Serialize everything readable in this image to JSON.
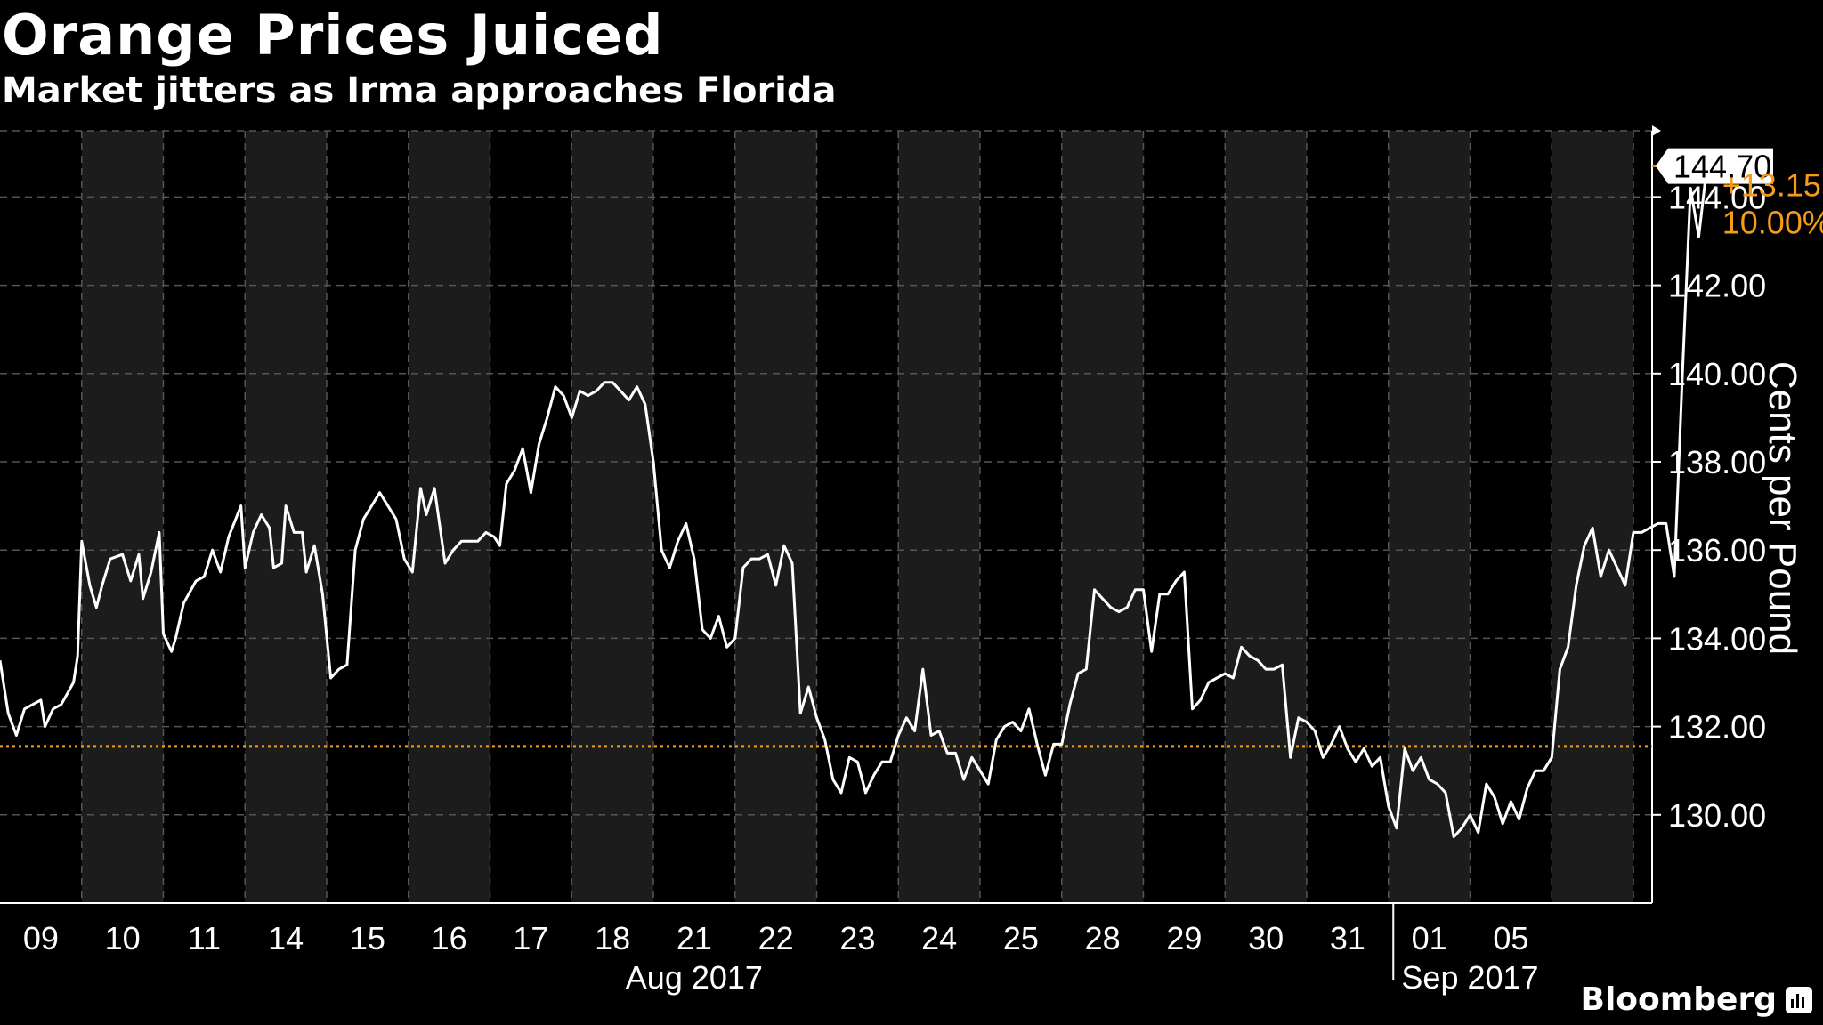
{
  "title": "Orange Prices Juiced",
  "subtitle": "Market jitters as Irma approaches Florida",
  "brand": "Bloomberg",
  "colors": {
    "background": "#000000",
    "line": "#ffffff",
    "accent": "#f59b1a",
    "band": "#1c1c1c"
  },
  "chart_data": {
    "type": "line",
    "ylabel": "Cents per Pound",
    "ylim": [
      128.0,
      145.5
    ],
    "yticks": [
      130.0,
      132.0,
      134.0,
      136.0,
      138.0,
      140.0,
      142.0,
      144.0
    ],
    "ytick_labels": [
      "130.00",
      "132.00",
      "134.00",
      "136.00",
      "138.00",
      "140.00",
      "142.00",
      "144.00"
    ],
    "x_days": [
      "09",
      "10",
      "11",
      "14",
      "15",
      "16",
      "17",
      "18",
      "21",
      "22",
      "23",
      "24",
      "25",
      "28",
      "29",
      "30",
      "31",
      "01",
      "05"
    ],
    "month_labels": [
      {
        "label": "Aug 2017",
        "from_day": 0,
        "to_day": 16
      },
      {
        "label": "Sep 2017",
        "from_day": 17,
        "to_day": 18
      }
    ],
    "grid": true,
    "last_value": "144.70",
    "change": "+13.15",
    "change_pct": "10.00%",
    "reference_value": 131.55,
    "series": [
      {
        "values": [
          [
            0.0,
            133.5
          ],
          [
            0.1,
            132.3
          ],
          [
            0.2,
            131.8
          ],
          [
            0.3,
            132.4
          ],
          [
            0.5,
            132.6
          ],
          [
            0.55,
            132.0
          ],
          [
            0.65,
            132.4
          ],
          [
            0.75,
            132.5
          ],
          [
            0.9,
            133.0
          ],
          [
            0.95,
            133.6
          ],
          [
            1.0,
            136.2
          ],
          [
            1.1,
            135.2
          ],
          [
            1.18,
            134.7
          ],
          [
            1.25,
            135.2
          ],
          [
            1.35,
            135.8
          ],
          [
            1.5,
            135.9
          ],
          [
            1.6,
            135.3
          ],
          [
            1.7,
            135.9
          ],
          [
            1.75,
            134.9
          ],
          [
            1.85,
            135.5
          ],
          [
            1.95,
            136.4
          ],
          [
            2.0,
            134.1
          ],
          [
            2.1,
            133.7
          ],
          [
            2.15,
            134.0
          ],
          [
            2.25,
            134.8
          ],
          [
            2.4,
            135.3
          ],
          [
            2.5,
            135.4
          ],
          [
            2.6,
            136.0
          ],
          [
            2.7,
            135.5
          ],
          [
            2.8,
            136.3
          ],
          [
            2.95,
            137.0
          ],
          [
            3.0,
            135.6
          ],
          [
            3.1,
            136.4
          ],
          [
            3.2,
            136.8
          ],
          [
            3.3,
            136.5
          ],
          [
            3.35,
            135.6
          ],
          [
            3.45,
            135.7
          ],
          [
            3.5,
            137.0
          ],
          [
            3.6,
            136.4
          ],
          [
            3.7,
            136.4
          ],
          [
            3.75,
            135.5
          ],
          [
            3.85,
            136.1
          ],
          [
            3.95,
            135.0
          ],
          [
            4.05,
            133.1
          ],
          [
            4.15,
            133.3
          ],
          [
            4.25,
            133.4
          ],
          [
            4.35,
            136.0
          ],
          [
            4.45,
            136.7
          ],
          [
            4.55,
            137.0
          ],
          [
            4.65,
            137.3
          ],
          [
            4.75,
            137.0
          ],
          [
            4.85,
            136.7
          ],
          [
            4.95,
            135.8
          ],
          [
            5.05,
            135.5
          ],
          [
            5.15,
            137.4
          ],
          [
            5.22,
            136.8
          ],
          [
            5.32,
            137.4
          ],
          [
            5.45,
            135.7
          ],
          [
            5.55,
            136.0
          ],
          [
            5.65,
            136.2
          ],
          [
            5.75,
            136.2
          ],
          [
            5.85,
            136.2
          ],
          [
            5.95,
            136.4
          ],
          [
            6.05,
            136.3
          ],
          [
            6.12,
            136.1
          ],
          [
            6.2,
            137.5
          ],
          [
            6.3,
            137.8
          ],
          [
            6.4,
            138.3
          ],
          [
            6.5,
            137.3
          ],
          [
            6.6,
            138.4
          ],
          [
            6.7,
            139.0
          ],
          [
            6.8,
            139.7
          ],
          [
            6.9,
            139.5
          ],
          [
            7.0,
            139.0
          ],
          [
            7.1,
            139.6
          ],
          [
            7.2,
            139.5
          ],
          [
            7.3,
            139.6
          ],
          [
            7.4,
            139.8
          ],
          [
            7.5,
            139.8
          ],
          [
            7.6,
            139.6
          ],
          [
            7.7,
            139.4
          ],
          [
            7.8,
            139.7
          ],
          [
            7.9,
            139.3
          ],
          [
            8.0,
            138.0
          ],
          [
            8.1,
            136.0
          ],
          [
            8.2,
            135.6
          ],
          [
            8.3,
            136.2
          ],
          [
            8.4,
            136.6
          ],
          [
            8.5,
            135.8
          ],
          [
            8.6,
            134.2
          ],
          [
            8.7,
            134.0
          ],
          [
            8.8,
            134.5
          ],
          [
            8.9,
            133.8
          ],
          [
            9.0,
            134.0
          ],
          [
            9.1,
            135.6
          ],
          [
            9.2,
            135.8
          ],
          [
            9.3,
            135.8
          ],
          [
            9.4,
            135.9
          ],
          [
            9.5,
            135.2
          ],
          [
            9.6,
            136.1
          ],
          [
            9.7,
            135.7
          ],
          [
            9.8,
            132.3
          ],
          [
            9.9,
            132.9
          ],
          [
            10.0,
            132.2
          ],
          [
            10.1,
            131.7
          ],
          [
            10.2,
            130.8
          ],
          [
            10.3,
            130.5
          ],
          [
            10.4,
            131.3
          ],
          [
            10.5,
            131.2
          ],
          [
            10.6,
            130.5
          ],
          [
            10.7,
            130.9
          ],
          [
            10.8,
            131.2
          ],
          [
            10.9,
            131.2
          ],
          [
            11.0,
            131.8
          ],
          [
            11.1,
            132.2
          ],
          [
            11.2,
            131.9
          ],
          [
            11.3,
            133.3
          ],
          [
            11.4,
            131.8
          ],
          [
            11.5,
            131.9
          ],
          [
            11.6,
            131.4
          ],
          [
            11.7,
            131.4
          ],
          [
            11.8,
            130.8
          ],
          [
            11.9,
            131.3
          ],
          [
            12.0,
            131.0
          ],
          [
            12.1,
            130.7
          ],
          [
            12.2,
            131.7
          ],
          [
            12.3,
            132.0
          ],
          [
            12.4,
            132.1
          ],
          [
            12.5,
            131.9
          ],
          [
            12.6,
            132.4
          ],
          [
            12.7,
            131.6
          ],
          [
            12.8,
            130.9
          ],
          [
            12.9,
            131.6
          ],
          [
            13.0,
            131.6
          ],
          [
            13.1,
            132.5
          ],
          [
            13.2,
            133.2
          ],
          [
            13.3,
            133.3
          ],
          [
            13.4,
            135.1
          ],
          [
            13.5,
            134.9
          ],
          [
            13.6,
            134.7
          ],
          [
            13.7,
            134.6
          ],
          [
            13.8,
            134.7
          ],
          [
            13.9,
            135.1
          ],
          [
            14.0,
            135.1
          ],
          [
            14.1,
            133.7
          ],
          [
            14.2,
            135.0
          ],
          [
            14.3,
            135.0
          ],
          [
            14.4,
            135.3
          ],
          [
            14.5,
            135.5
          ],
          [
            14.6,
            132.4
          ],
          [
            14.7,
            132.6
          ],
          [
            14.8,
            133.0
          ],
          [
            14.9,
            133.1
          ],
          [
            15.0,
            133.2
          ],
          [
            15.1,
            133.1
          ],
          [
            15.2,
            133.8
          ],
          [
            15.3,
            133.6
          ],
          [
            15.4,
            133.5
          ],
          [
            15.5,
            133.3
          ],
          [
            15.6,
            133.3
          ],
          [
            15.7,
            133.4
          ],
          [
            15.8,
            131.3
          ],
          [
            15.9,
            132.2
          ],
          [
            16.0,
            132.1
          ],
          [
            16.1,
            131.9
          ],
          [
            16.2,
            131.3
          ],
          [
            16.3,
            131.6
          ],
          [
            16.4,
            132.0
          ],
          [
            16.5,
            131.5
          ],
          [
            16.6,
            131.2
          ],
          [
            16.7,
            131.5
          ],
          [
            16.8,
            131.1
          ],
          [
            16.9,
            131.3
          ],
          [
            17.0,
            130.2
          ],
          [
            17.1,
            129.7
          ],
          [
            17.2,
            131.5
          ],
          [
            17.3,
            131.0
          ],
          [
            17.4,
            131.3
          ],
          [
            17.5,
            130.8
          ],
          [
            17.6,
            130.7
          ],
          [
            17.7,
            130.5
          ],
          [
            17.8,
            129.5
          ],
          [
            17.9,
            129.7
          ],
          [
            18.0,
            130.0
          ],
          [
            18.1,
            129.6
          ],
          [
            18.2,
            130.7
          ],
          [
            18.3,
            130.4
          ],
          [
            18.4,
            129.8
          ],
          [
            18.5,
            130.3
          ],
          [
            18.6,
            129.9
          ],
          [
            18.7,
            130.6
          ],
          [
            18.8,
            131.0
          ],
          [
            18.9,
            131.0
          ],
          [
            19.0,
            131.3
          ],
          [
            19.1,
            133.3
          ],
          [
            19.2,
            133.8
          ],
          [
            19.3,
            135.2
          ],
          [
            19.4,
            136.1
          ],
          [
            19.5,
            136.5
          ],
          [
            19.6,
            135.4
          ],
          [
            19.7,
            136.0
          ],
          [
            19.8,
            135.6
          ],
          [
            19.9,
            135.2
          ],
          [
            20.0,
            136.4
          ],
          [
            20.1,
            136.4
          ],
          [
            20.2,
            136.5
          ],
          [
            20.3,
            136.6
          ],
          [
            20.4,
            136.6
          ],
          [
            20.5,
            135.4
          ],
          [
            20.6,
            140.0
          ],
          [
            20.7,
            144.2
          ],
          [
            20.8,
            143.1
          ],
          [
            20.9,
            144.7
          ],
          [
            21.0,
            144.7
          ]
        ]
      }
    ]
  }
}
